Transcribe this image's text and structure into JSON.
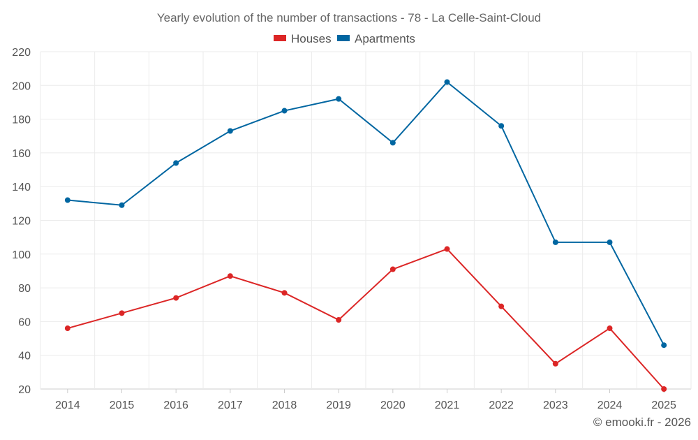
{
  "chart_data": {
    "type": "line",
    "title": "Yearly evolution of the number of transactions - 78 - La Celle-Saint-Cloud",
    "xlabel": "",
    "ylabel": "",
    "x": [
      "2014",
      "2015",
      "2016",
      "2017",
      "2018",
      "2019",
      "2020",
      "2021",
      "2022",
      "2023",
      "2024",
      "2025"
    ],
    "ylim": [
      20,
      220
    ],
    "yticks": [
      20,
      40,
      60,
      80,
      100,
      120,
      140,
      160,
      180,
      200,
      220
    ],
    "grid": true,
    "legend_position": "top-center",
    "series": [
      {
        "name": "Houses",
        "color": "#dc2626",
        "values": [
          56,
          65,
          74,
          87,
          77,
          61,
          91,
          103,
          69,
          35,
          56,
          20
        ]
      },
      {
        "name": "Apartments",
        "color": "#0066a1",
        "values": [
          132,
          129,
          154,
          173,
          185,
          192,
          166,
          202,
          176,
          107,
          107,
          46
        ]
      }
    ]
  },
  "credit": "© emooki.fr - 2026"
}
